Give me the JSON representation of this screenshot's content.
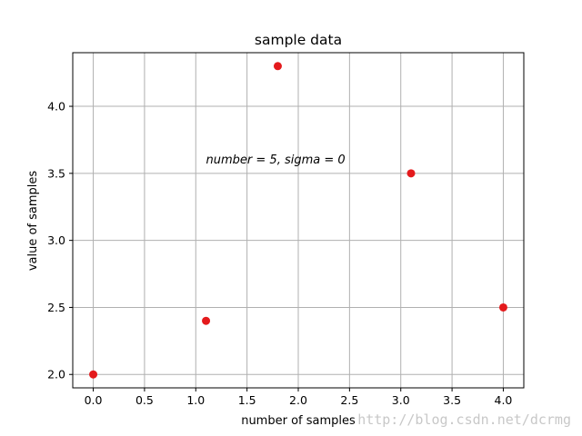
{
  "chart_data": {
    "type": "scatter",
    "title": "sample data",
    "xlabel": "number of samples",
    "ylabel": "value of samples",
    "xlim": [
      -0.2,
      4.2
    ],
    "ylim": [
      1.9,
      4.4
    ],
    "xticks": [
      0.0,
      0.5,
      1.0,
      1.5,
      2.0,
      2.5,
      3.0,
      3.5,
      4.0
    ],
    "yticks": [
      2.0,
      2.5,
      3.0,
      3.5,
      4.0
    ],
    "x_tick_labels": [
      "0.0",
      "0.5",
      "1.0",
      "1.5",
      "2.0",
      "2.5",
      "3.0",
      "3.5",
      "4.0"
    ],
    "y_tick_labels": [
      "2.0",
      "2.5",
      "3.0",
      "3.5",
      "4.0"
    ],
    "grid": true,
    "series": [
      {
        "color": "#e41a1c",
        "points": [
          {
            "x": 0.0,
            "y": 2.0
          },
          {
            "x": 1.1,
            "y": 2.4
          },
          {
            "x": 1.8,
            "y": 4.3
          },
          {
            "x": 3.1,
            "y": 3.5
          },
          {
            "x": 4.0,
            "y": 2.5
          }
        ]
      }
    ],
    "annotation": {
      "text": "number = 5, sigma = 0",
      "x": 1.1,
      "y": 3.6
    }
  },
  "watermark": "http://blog.csdn.net/dcrmg"
}
